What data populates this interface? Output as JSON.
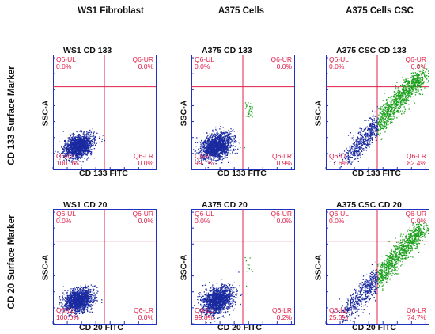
{
  "columns": [
    "WS1 Fibroblast",
    "A375 Cells",
    "A375 Cells CSC"
  ],
  "rows": [
    "CD 133 Surface Marker",
    "CD 20 Surface Marker"
  ],
  "colors": {
    "quadrant": "#e0204a",
    "axis": "#2030c0",
    "neg_pop": "#1a2aa0",
    "pos_pop": "#1aa01a"
  },
  "chart_data": [
    {
      "type": "scatter",
      "title": "WS1 CD 133",
      "xlabel": "CD 133 FITC",
      "ylabel": "SSC-A",
      "scale": "log",
      "quadrants": {
        "UL": {
          "name": "Q6-UL",
          "value": "0.0%"
        },
        "UR": {
          "name": "Q6-UR",
          "value": "0.0%"
        },
        "LL": {
          "name": "Q6-LL",
          "value": "100.0%"
        },
        "LR": {
          "name": "Q6-LR",
          "value": "0.0%"
        }
      },
      "population": {
        "pos_fraction": 0.0,
        "spread": 0.9
      }
    },
    {
      "type": "scatter",
      "title": "A375 CD 133",
      "xlabel": "CD 133 FITC",
      "ylabel": "SSC-A",
      "scale": "log",
      "quadrants": {
        "UL": {
          "name": "Q6-UL",
          "value": "0.0%"
        },
        "UR": {
          "name": "Q6-UR",
          "value": "0.0%"
        },
        "LL": {
          "name": "Q6-LL",
          "value": "99.1%"
        },
        "LR": {
          "name": "Q6-LR",
          "value": "0.9%"
        }
      },
      "population": {
        "pos_fraction": 0.009,
        "spread": 1.0
      }
    },
    {
      "type": "scatter",
      "title": "A375 CSC CD 133",
      "xlabel": "CD 133 FITC",
      "ylabel": "SSC-A",
      "scale": "log",
      "quadrants": {
        "UL": {
          "name": "Q6-UL",
          "value": "0.0%"
        },
        "UR": {
          "name": "Q6-UR",
          "value": "0.0%"
        },
        "LL": {
          "name": "Q6-LL",
          "value": "17.6%"
        },
        "LR": {
          "name": "Q6-LR",
          "value": "82.4%"
        }
      },
      "population": {
        "pos_fraction": 0.824,
        "spread": 1.4
      }
    },
    {
      "type": "scatter",
      "title": "WS1 CD 20",
      "xlabel": "CD 20 FITC",
      "ylabel": "SSC-A",
      "scale": "log",
      "quadrants": {
        "UL": {
          "name": "Q6-UL",
          "value": "0.0%"
        },
        "UR": {
          "name": "Q6-UR",
          "value": "0.0%"
        },
        "LL": {
          "name": "Q6-LL",
          "value": "100.0%"
        },
        "LR": {
          "name": "Q6-LR",
          "value": "0.0%"
        }
      },
      "population": {
        "pos_fraction": 0.0,
        "spread": 0.9
      }
    },
    {
      "type": "scatter",
      "title": "A375 CD 20",
      "xlabel": "CD 20 FITC",
      "ylabel": "SSC-A",
      "scale": "log",
      "quadrants": {
        "UL": {
          "name": "Q6-UL",
          "value": "0.0%"
        },
        "UR": {
          "name": "Q6-UR",
          "value": "0.0%"
        },
        "LL": {
          "name": "Q6-LL",
          "value": "99.8%"
        },
        "LR": {
          "name": "Q6-LR",
          "value": "0.2%"
        }
      },
      "population": {
        "pos_fraction": 0.002,
        "spread": 1.0
      }
    },
    {
      "type": "scatter",
      "title": "A375 CSC CD 20",
      "xlabel": "CD 20 FITC",
      "ylabel": "SSC-A",
      "scale": "log",
      "quadrants": {
        "UL": {
          "name": "Q6-UL",
          "value": "0.0%"
        },
        "UR": {
          "name": "Q6-UR",
          "value": "0.0%"
        },
        "LL": {
          "name": "Q6-LL",
          "value": "25.3%"
        },
        "LR": {
          "name": "Q6-LR",
          "value": "74.7%"
        }
      },
      "population": {
        "pos_fraction": 0.747,
        "spread": 1.4
      }
    }
  ]
}
